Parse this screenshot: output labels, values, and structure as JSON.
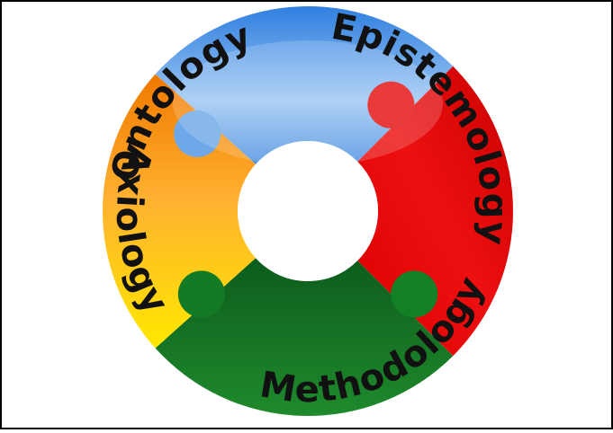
{
  "segments": [
    {
      "label": "Ontology"
    },
    {
      "label": "Epistemology"
    },
    {
      "label": "Methodology"
    },
    {
      "label": "Axiology"
    }
  ]
}
